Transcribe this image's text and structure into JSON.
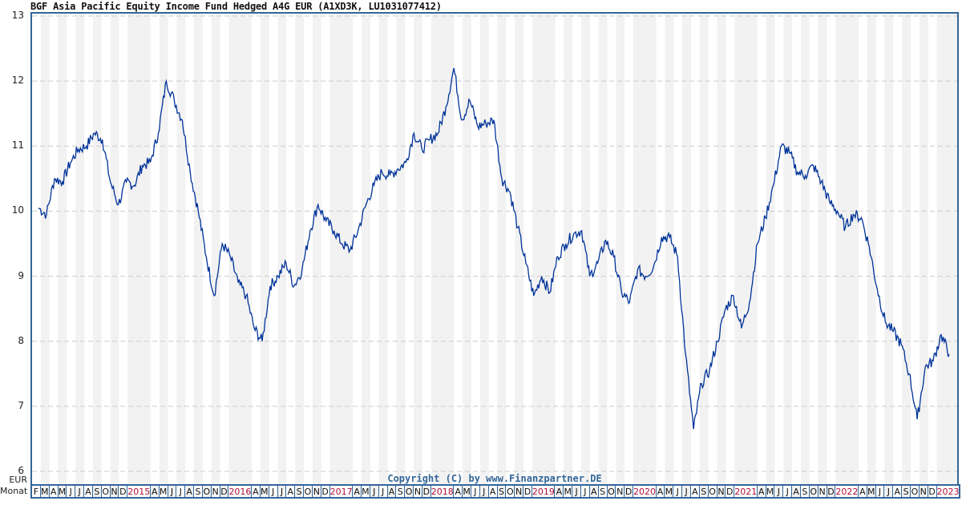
{
  "title": "BGF Asia Pacific Equity Income Fund Hedged A4G EUR (A1XD3K, LU1031077412)",
  "copyright": "Copyright (C) by www.Finanzpartner.DE",
  "y_axis_unit": "EUR",
  "x_axis_label": "Monat",
  "colors": {
    "line": "#003399",
    "frame": "#336699",
    "year_label": "#b0103a",
    "band": "#f2f2f2",
    "grid": "#cccccc"
  },
  "y_ticks": [
    "13",
    "12",
    "11",
    "10",
    "9",
    "8",
    "7",
    "6"
  ],
  "months": [
    "F",
    "M",
    "A",
    "M",
    "J",
    "J",
    "A",
    "S",
    "O",
    "N",
    "D",
    "2015",
    "A",
    "M",
    "J",
    "J",
    "A",
    "S",
    "O",
    "N",
    "D",
    "2016",
    "A",
    "M",
    "J",
    "J",
    "A",
    "S",
    "O",
    "N",
    "D",
    "2017",
    "A",
    "M",
    "J",
    "J",
    "A",
    "S",
    "O",
    "N",
    "D",
    "2018",
    "A",
    "M",
    "J",
    "J",
    "A",
    "S",
    "O",
    "N",
    "D",
    "2019",
    "A",
    "M",
    "J",
    "J",
    "A",
    "S",
    "O",
    "N",
    "D",
    "2020",
    "A",
    "M",
    "J",
    "J",
    "A",
    "S",
    "O",
    "N",
    "D",
    "2021",
    "A",
    "M",
    "J",
    "J",
    "A",
    "S",
    "O",
    "N",
    "D",
    "2022",
    "A",
    "M",
    "J",
    "J",
    "A",
    "S",
    "O",
    "N",
    "D",
    "2023"
  ],
  "chart_data": {
    "type": "line",
    "title": "BGF Asia Pacific Equity Income Fund Hedged A4G EUR (A1XD3K, LU1031077412)",
    "xlabel": "Monat",
    "ylabel": "EUR",
    "ylim": [
      6,
      13
    ],
    "grid": true,
    "legend": null,
    "x": [
      "2014-02",
      "2014-03",
      "2014-04",
      "2014-05",
      "2014-06",
      "2014-07",
      "2014-08",
      "2014-09",
      "2014-10",
      "2014-11",
      "2014-12",
      "2015-01",
      "2015-02",
      "2015-03",
      "2015-04",
      "2015-05",
      "2015-06",
      "2015-07",
      "2015-08",
      "2015-09",
      "2015-10",
      "2015-11",
      "2015-12",
      "2016-01",
      "2016-02",
      "2016-03",
      "2016-04",
      "2016-05",
      "2016-06",
      "2016-07",
      "2016-08",
      "2016-09",
      "2016-10",
      "2016-11",
      "2016-12",
      "2017-01",
      "2017-02",
      "2017-03",
      "2017-04",
      "2017-05",
      "2017-06",
      "2017-07",
      "2017-08",
      "2017-09",
      "2017-10",
      "2017-11",
      "2017-12",
      "2018-01",
      "2018-02",
      "2018-03",
      "2018-04",
      "2018-05",
      "2018-06",
      "2018-07",
      "2018-08",
      "2018-09",
      "2018-10",
      "2018-11",
      "2018-12",
      "2019-01",
      "2019-02",
      "2019-03",
      "2019-04",
      "2019-05",
      "2019-06",
      "2019-07",
      "2019-08",
      "2019-09",
      "2019-10",
      "2019-11",
      "2019-12",
      "2020-01",
      "2020-02",
      "2020-03",
      "2020-04",
      "2020-05",
      "2020-06",
      "2020-07",
      "2020-08",
      "2020-09",
      "2020-10",
      "2020-11",
      "2020-12",
      "2021-01",
      "2021-02",
      "2021-03",
      "2021-04",
      "2021-05",
      "2021-06",
      "2021-07",
      "2021-08",
      "2021-09",
      "2021-10",
      "2021-11",
      "2021-12",
      "2022-01",
      "2022-02",
      "2022-03",
      "2022-04",
      "2022-05",
      "2022-06",
      "2022-07",
      "2022-08",
      "2022-09",
      "2022-10",
      "2022-11",
      "2022-12",
      "2023-01",
      "2023-02"
    ],
    "series": [
      {
        "name": "BGF Asia Pacific Equity Income Fund Hedged A4G EUR",
        "values": [
          10.05,
          9.95,
          10.5,
          10.45,
          10.75,
          10.95,
          11.0,
          11.2,
          11.1,
          10.45,
          10.1,
          10.45,
          10.4,
          10.7,
          10.75,
          11.2,
          12.0,
          11.7,
          11.4,
          10.6,
          10.0,
          9.3,
          8.7,
          9.5,
          9.3,
          8.9,
          8.7,
          8.2,
          8.0,
          8.85,
          9.0,
          9.2,
          8.85,
          9.1,
          9.7,
          10.1,
          9.85,
          9.7,
          9.5,
          9.4,
          9.7,
          10.1,
          10.4,
          10.6,
          10.55,
          10.65,
          10.75,
          11.2,
          10.95,
          11.1,
          11.2,
          11.6,
          12.2,
          11.4,
          11.7,
          11.3,
          11.35,
          11.4,
          10.5,
          10.3,
          9.75,
          9.2,
          8.7,
          9.0,
          8.75,
          9.3,
          9.5,
          9.65,
          9.7,
          9.0,
          9.2,
          9.55,
          9.3,
          8.75,
          8.6,
          9.1,
          9.0,
          9.15,
          9.6,
          9.6,
          9.3,
          7.8,
          6.65,
          7.35,
          7.55,
          8.0,
          8.5,
          8.7,
          8.2,
          8.6,
          9.5,
          9.9,
          10.4,
          11.0,
          10.9,
          10.6,
          10.55,
          10.7,
          10.45,
          10.15,
          10.0,
          9.75,
          9.95,
          9.9,
          9.45,
          8.8,
          8.3,
          8.15,
          7.95,
          7.5,
          6.8,
          7.6,
          7.7,
          8.1,
          7.8
        ]
      }
    ]
  }
}
